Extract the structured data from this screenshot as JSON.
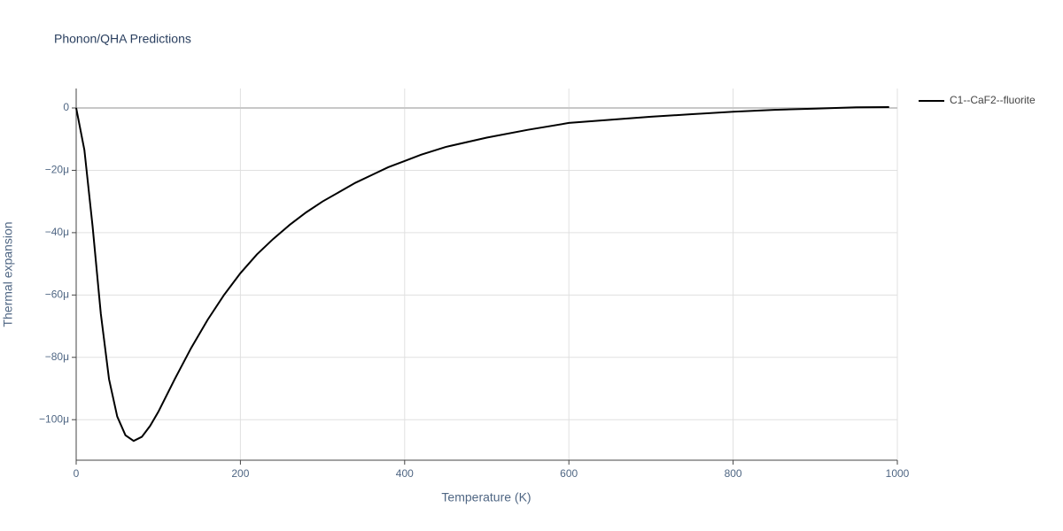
{
  "chart_data": {
    "type": "line",
    "title": "Phonon/QHA Predictions",
    "x_label": "Temperature (K)",
    "y_label": "Thermal expansion",
    "x": [
      0,
      10,
      20,
      30,
      40,
      50,
      60,
      70,
      80,
      90,
      100,
      120,
      140,
      160,
      180,
      200,
      220,
      240,
      260,
      280,
      300,
      320,
      340,
      360,
      380,
      400,
      420,
      450,
      500,
      550,
      600,
      650,
      700,
      750,
      800,
      850,
      900,
      950,
      990
    ],
    "series": [
      {
        "name": "C1--CaF2--fluorite",
        "color": "#000000",
        "values": [
          0,
          -1.35e-05,
          -3.8e-05,
          -6.6e-05,
          -8.7e-05,
          -9.9e-05,
          -0.000105,
          -0.0001068,
          -0.0001055,
          -0.000102,
          -9.75e-05,
          -8.7e-05,
          -7.7e-05,
          -6.8e-05,
          -6e-05,
          -5.3e-05,
          -4.7e-05,
          -4.2e-05,
          -3.75e-05,
          -3.35e-05,
          -3e-05,
          -2.7e-05,
          -2.4e-05,
          -2.15e-05,
          -1.9e-05,
          -1.7e-05,
          -1.5e-05,
          -1.25e-05,
          -9.5e-06,
          -7e-06,
          -4.8e-06,
          -3.8e-06,
          -2.8e-06,
          -2e-06,
          -1.2e-06,
          -6e-07,
          -2e-07,
          2e-07,
          3e-07
        ]
      }
    ],
    "xlim": [
      0,
      1000
    ],
    "xticks": [
      0,
      200,
      400,
      600,
      800,
      1000
    ],
    "ylim": [
      -0.000113,
      6.25e-06
    ],
    "yticks": [
      0,
      {
        "value": -2e-05,
        "label": "−20μ"
      },
      {
        "value": -4e-05,
        "label": "−40μ"
      },
      {
        "value": -6e-05,
        "label": "−60μ"
      },
      {
        "value": -8e-05,
        "label": "−80μ"
      },
      {
        "value": -0.0001,
        "label": "−100μ"
      }
    ],
    "grid": true,
    "legend": "right"
  }
}
